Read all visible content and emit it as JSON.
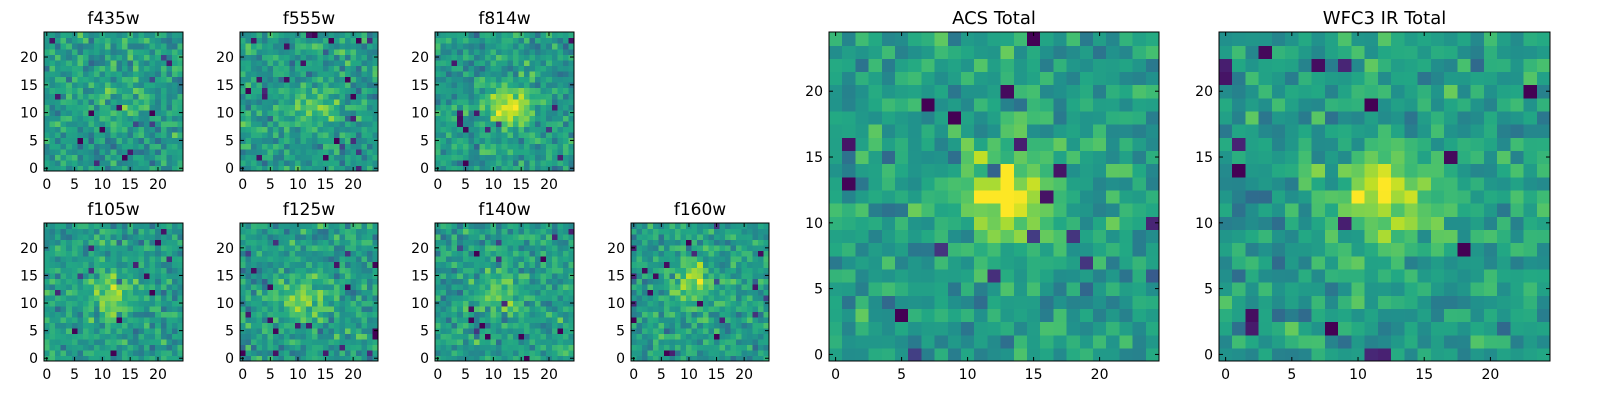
{
  "chart_data": [
    {
      "type": "heatmap",
      "title": "f435w",
      "xlabel": "",
      "ylabel": "",
      "xlim": [
        0,
        24
      ],
      "ylim": [
        0,
        24
      ],
      "xticks": [
        "0",
        "5",
        "10",
        "15",
        "20"
      ],
      "yticks": [
        "0",
        "5",
        "10",
        "15",
        "20"
      ],
      "grid": [
        25,
        25
      ],
      "colormap": "viridis",
      "seed": 11,
      "blob": {
        "cx": 13,
        "cy": 13,
        "strength": 0.1
      }
    },
    {
      "type": "heatmap",
      "title": "f555w",
      "xlabel": "",
      "ylabel": "",
      "xlim": [
        0,
        24
      ],
      "ylim": [
        0,
        24
      ],
      "xticks": [
        "0",
        "5",
        "10",
        "15",
        "20"
      ],
      "yticks": [
        "0",
        "5",
        "10",
        "15",
        "20"
      ],
      "grid": [
        25,
        25
      ],
      "colormap": "viridis",
      "seed": 23,
      "blob": {
        "cx": 13,
        "cy": 11,
        "strength": 0.22
      }
    },
    {
      "type": "heatmap",
      "title": "f814w",
      "xlabel": "",
      "ylabel": "",
      "xlim": [
        0,
        24
      ],
      "ylim": [
        0,
        24
      ],
      "xticks": [
        "0",
        "5",
        "10",
        "15",
        "20"
      ],
      "yticks": [
        "0",
        "5",
        "10",
        "15",
        "20"
      ],
      "grid": [
        25,
        25
      ],
      "colormap": "viridis",
      "seed": 37,
      "blob": {
        "cx": 13,
        "cy": 11,
        "strength": 0.38
      }
    },
    {
      "type": "heatmap",
      "title": "f105w",
      "xlabel": "",
      "ylabel": "",
      "xlim": [
        0,
        24
      ],
      "ylim": [
        0,
        24
      ],
      "xticks": [
        "0",
        "5",
        "10",
        "15",
        "20"
      ],
      "yticks": [
        "0",
        "5",
        "10",
        "15",
        "20"
      ],
      "grid": [
        25,
        25
      ],
      "colormap": "viridis",
      "seed": 41,
      "blob": {
        "cx": 12,
        "cy": 12,
        "strength": 0.3
      }
    },
    {
      "type": "heatmap",
      "title": "f125w",
      "xlabel": "",
      "ylabel": "",
      "xlim": [
        0,
        24
      ],
      "ylim": [
        0,
        24
      ],
      "xticks": [
        "0",
        "5",
        "10",
        "15",
        "20"
      ],
      "yticks": [
        "0",
        "5",
        "10",
        "15",
        "20"
      ],
      "grid": [
        25,
        25
      ],
      "colormap": "viridis",
      "seed": 53,
      "blob": {
        "cx": 11,
        "cy": 11,
        "strength": 0.25
      }
    },
    {
      "type": "heatmap",
      "title": "f140w",
      "xlabel": "",
      "ylabel": "",
      "xlim": [
        0,
        24
      ],
      "ylim": [
        0,
        24
      ],
      "xticks": [
        "0",
        "5",
        "10",
        "15",
        "20"
      ],
      "yticks": [
        "0",
        "5",
        "10",
        "15",
        "20"
      ],
      "grid": [
        25,
        25
      ],
      "colormap": "viridis",
      "seed": 67,
      "blob": {
        "cx": 12,
        "cy": 12,
        "strength": 0.2
      }
    },
    {
      "type": "heatmap",
      "title": "f160w",
      "xlabel": "",
      "ylabel": "",
      "xlim": [
        0,
        24
      ],
      "ylim": [
        0,
        24
      ],
      "xticks": [
        "0",
        "5",
        "10",
        "15",
        "20"
      ],
      "yticks": [
        "0",
        "5",
        "10",
        "15",
        "20"
      ],
      "grid": [
        25,
        25
      ],
      "colormap": "viridis",
      "seed": 79,
      "blob": {
        "cx": 11,
        "cy": 14,
        "strength": 0.3
      }
    },
    {
      "type": "heatmap",
      "title": "ACS Total",
      "xlabel": "",
      "ylabel": "",
      "xlim": [
        0,
        24
      ],
      "ylim": [
        0,
        24
      ],
      "xticks": [
        "0",
        "5",
        "10",
        "15",
        "20"
      ],
      "yticks": [
        "0",
        "5",
        "10",
        "15",
        "20"
      ],
      "grid": [
        25,
        25
      ],
      "colormap": "viridis",
      "seed": 97,
      "blob": {
        "cx": 13,
        "cy": 12,
        "strength": 0.45
      }
    },
    {
      "type": "heatmap",
      "title": "WFC3 IR Total",
      "xlabel": "",
      "ylabel": "",
      "xlim": [
        0,
        24
      ],
      "ylim": [
        0,
        24
      ],
      "xticks": [
        "0",
        "5",
        "10",
        "15",
        "20"
      ],
      "yticks": [
        "0",
        "5",
        "10",
        "15",
        "20"
      ],
      "grid": [
        25,
        25
      ],
      "colormap": "viridis",
      "seed": 131,
      "blob": {
        "cx": 12,
        "cy": 12,
        "strength": 0.4
      }
    }
  ]
}
